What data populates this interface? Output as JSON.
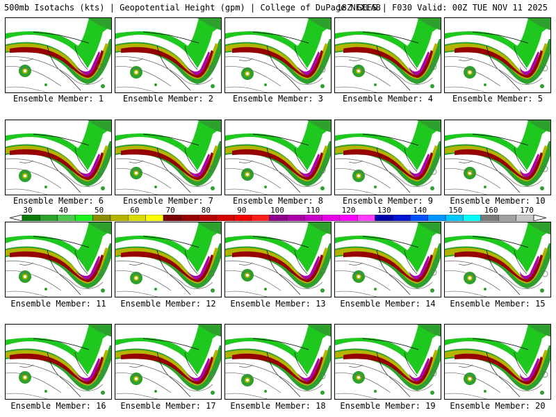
{
  "header": {
    "title_left": "500mb Isotachs (kts) | Geopotential Height (gpm) | College of DuPage NEXLAB",
    "title_right": "18Z GEFS | F030 Valid: 00Z TUE NOV 11 2025"
  },
  "members": [
    {
      "label": "Ensemble Member: 1"
    },
    {
      "label": "Ensemble Member: 2"
    },
    {
      "label": "Ensemble Member: 3"
    },
    {
      "label": "Ensemble Member: 4"
    },
    {
      "label": "Ensemble Member: 5"
    },
    {
      "label": "Ensemble Member: 6"
    },
    {
      "label": "Ensemble Member: 7"
    },
    {
      "label": "Ensemble Member: 8"
    },
    {
      "label": "Ensemble Member: 9"
    },
    {
      "label": "Ensemble Member: 10"
    },
    {
      "label": "Ensemble Member: 11"
    },
    {
      "label": "Ensemble Member: 12"
    },
    {
      "label": "Ensemble Member: 13"
    },
    {
      "label": "Ensemble Member: 14"
    },
    {
      "label": "Ensemble Member: 15"
    },
    {
      "label": "Ensemble Member: 16"
    },
    {
      "label": "Ensemble Member: 17"
    },
    {
      "label": "Ensemble Member: 18"
    },
    {
      "label": "Ensemble Member: 19"
    },
    {
      "label": "Ensemble Member: 20"
    }
  ],
  "colorbar": {
    "labels": [
      "30",
      "40",
      "50",
      "60",
      "70",
      "80",
      "90",
      "100",
      "110",
      "120",
      "130",
      "140",
      "150",
      "160",
      "170"
    ],
    "colors": [
      "#0c7a0c",
      "#2ea02e",
      "#4cc84c",
      "#1ef01e",
      "#8c8c00",
      "#b4b400",
      "#dcdc00",
      "#ffff00",
      "#7a0000",
      "#960000",
      "#b40000",
      "#d20000",
      "#f00000",
      "#ff1e1e",
      "#8c008c",
      "#aa00aa",
      "#c800c8",
      "#e600e6",
      "#ff00ff",
      "#ff3cff",
      "#0000aa",
      "#0014d2",
      "#0050ff",
      "#0096ff",
      "#00c8ff",
      "#00ffff",
      "#7a7a7a",
      "#a0a0a0",
      "#c8c8c8"
    ]
  }
}
